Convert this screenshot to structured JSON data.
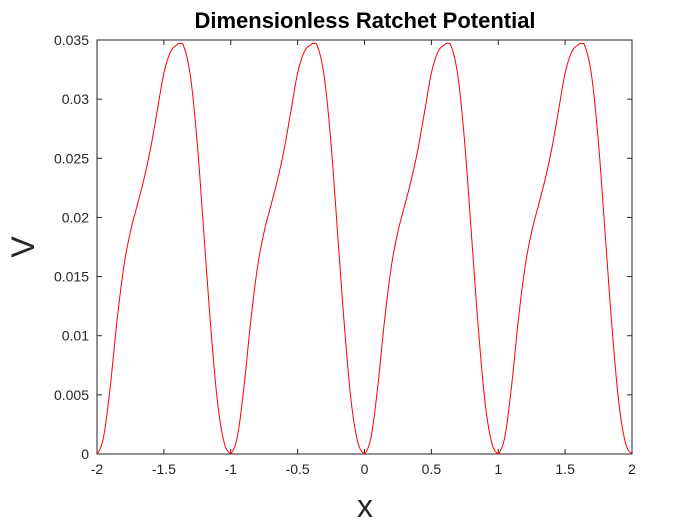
{
  "chart_data": {
    "type": "line",
    "title": "Dimensionless Ratchet Potential",
    "xlabel": "x",
    "ylabel": "V",
    "xlim": [
      -2,
      2
    ],
    "ylim": [
      0,
      0.035
    ],
    "xticks": [
      "-2",
      "-1.5",
      "-1",
      "-0.5",
      "0",
      "0.5",
      "1",
      "1.5",
      "2"
    ],
    "yticks": [
      "0",
      "0.005",
      "0.01",
      "0.015",
      "0.02",
      "0.025",
      "0.03",
      "0.035"
    ],
    "grid": false,
    "box": true,
    "color": "#ff0000",
    "period": 1,
    "series": [
      {
        "period_shape": {
          "x": [
            0,
            0.05,
            0.1,
            0.15,
            0.2,
            0.25,
            0.3,
            0.35,
            0.4,
            0.45,
            0.5,
            0.55,
            0.6,
            0.62,
            0.65,
            0.7,
            0.75,
            0.8,
            0.85,
            0.9,
            0.95,
            1.0
          ],
          "y": [
            0,
            0.0015,
            0.0058,
            0.0113,
            0.0158,
            0.0188,
            0.021,
            0.0232,
            0.0258,
            0.029,
            0.0322,
            0.034,
            0.0346,
            0.0347,
            0.0344,
            0.0318,
            0.0262,
            0.0185,
            0.0108,
            0.0045,
            0.001,
            0
          ]
        }
      }
    ]
  }
}
